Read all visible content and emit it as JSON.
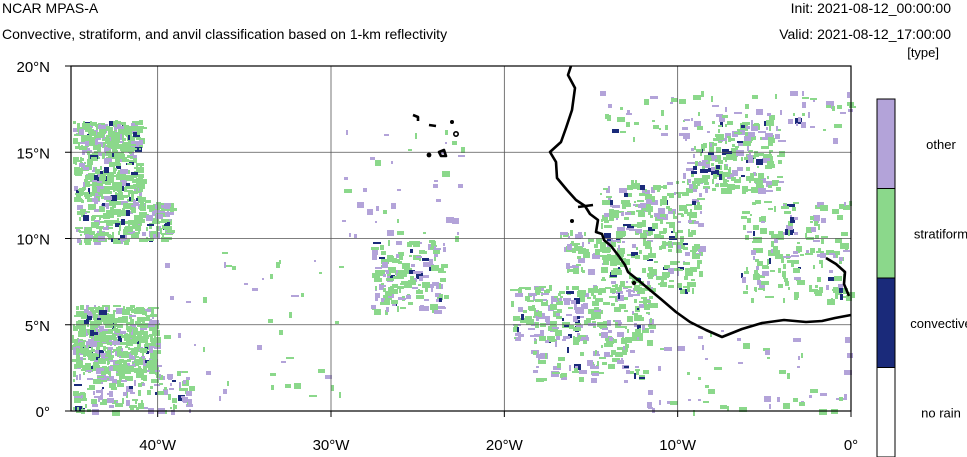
{
  "header": {
    "model_name": "NCAR MPAS-A",
    "subtitle": "Convective, stratiform, and anvil classification based on 1-km reflectivity",
    "init": "Init: 2021-08-12_00:00:00",
    "valid": "Valid: 2021-08-12_17:00:00",
    "units": "[type]"
  },
  "map": {
    "lon_range": [
      -45,
      0
    ],
    "lat_range": [
      0,
      20
    ],
    "x_ticks": [
      {
        "lon": -40,
        "label": "40°W"
      },
      {
        "lon": -30,
        "label": "30°W"
      },
      {
        "lon": -20,
        "label": "20°W"
      },
      {
        "lon": -10,
        "label": "10°W"
      },
      {
        "lon": 0,
        "label": "0°"
      }
    ],
    "y_ticks": [
      {
        "lat": 20,
        "label": "20°N"
      },
      {
        "lat": 15,
        "label": "15°N"
      },
      {
        "lat": 10,
        "label": "10°N"
      },
      {
        "lat": 5,
        "label": "5°N"
      },
      {
        "lat": 0,
        "label": "0°"
      }
    ],
    "gridlines": true
  },
  "legend": {
    "categories": [
      {
        "label": "other",
        "color": "#b3a3d9"
      },
      {
        "label": "stratiform",
        "color": "#8bd88b"
      },
      {
        "label": "convective",
        "color": "#1a2a7a"
      },
      {
        "label": "no rain",
        "color": "#ffffff"
      }
    ]
  },
  "colors": {
    "other": "#b3a3d9",
    "stratiform": "#8bd88b",
    "convective": "#1a2a7a",
    "coast": "#000000"
  }
}
